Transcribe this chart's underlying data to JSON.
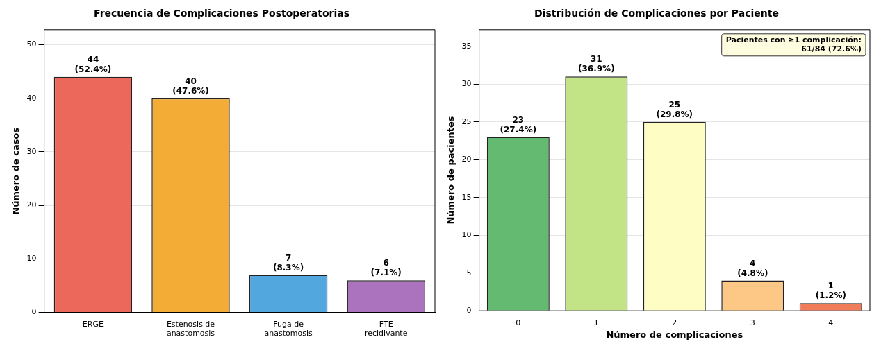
{
  "chart_data": [
    {
      "type": "bar",
      "title": "Frecuencia de Complicaciones Postoperatorias",
      "ylabel": "Número de casos",
      "categories": [
        "ERGE",
        "Estenosis de anastomosis",
        "Fuga de anastomosis",
        "FTE recidivante"
      ],
      "values": [
        44,
        40,
        7,
        6
      ],
      "colors": [
        "#ec685b",
        "#f3ac35",
        "#52a7de",
        "#ab73be"
      ],
      "value_labels": [
        "44\n(52.4%)",
        "40\n(47.6%)",
        "7\n(8.3%)",
        "6\n(7.1%)"
      ],
      "ylim": [
        0,
        52.8
      ],
      "yticks": [
        0,
        10,
        20,
        30,
        40,
        50
      ],
      "grid": "y",
      "legend": false
    },
    {
      "type": "bar",
      "title": "Distribución de Complicaciones por Paciente",
      "xlabel": "Número de complicaciones",
      "ylabel": "Número de pacientes",
      "categories": [
        "0",
        "1",
        "2",
        "3",
        "4"
      ],
      "values": [
        23,
        31,
        25,
        4,
        1
      ],
      "colors": [
        "#64ba70",
        "#c2e386",
        "#fefdc4",
        "#fdc785",
        "#f07c5a"
      ],
      "value_labels": [
        "23\n(27.4%)",
        "31\n(36.9%)",
        "25\n(29.8%)",
        "4\n(4.8%)",
        "1\n(1.2%)"
      ],
      "ylim": [
        0,
        37.2
      ],
      "yticks": [
        0,
        5,
        10,
        15,
        20,
        25,
        30,
        35
      ],
      "grid": "y",
      "legend": false,
      "annotations": [
        "Pacientes con ≥1 complicación:\n61/84 (72.6%)"
      ]
    }
  ]
}
